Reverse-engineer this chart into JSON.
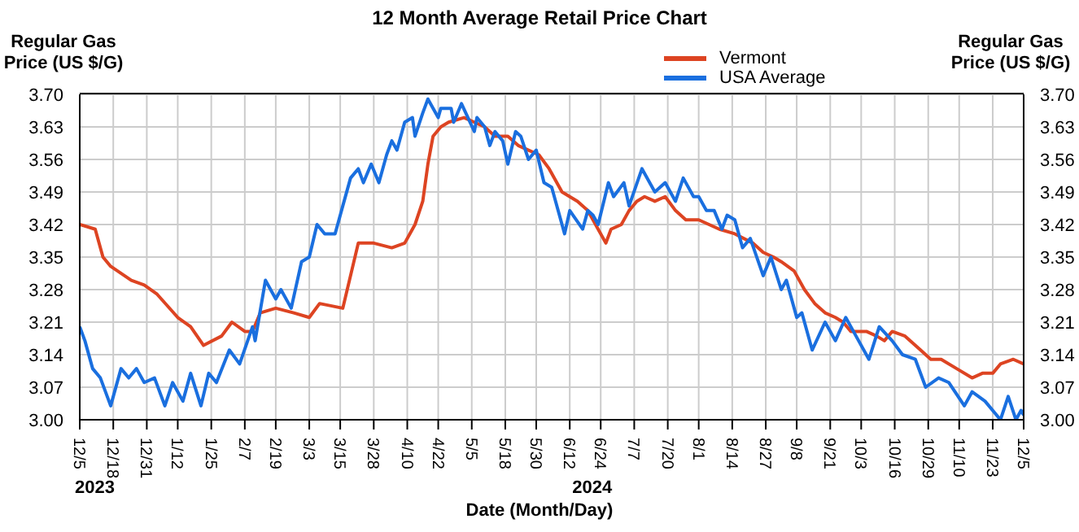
{
  "chart_data": {
    "type": "line",
    "title": "12 Month Average Retail Price Chart",
    "xlabel": "Date (Month/Day)",
    "ylabel": "Regular Gas Price (US $/G)",
    "y2label": "Regular Gas Price (US $/G)",
    "xlim": [
      "2023-12-05",
      "2024-12-05"
    ],
    "xticks": [
      {
        "value": "2023-12-05",
        "label": "12/5"
      },
      {
        "value": "2023-12-18",
        "label": "12/18"
      },
      {
        "value": "2023-12-31",
        "label": "12/31"
      },
      {
        "value": "2024-01-12",
        "label": "1/12"
      },
      {
        "value": "2024-01-25",
        "label": "1/25"
      },
      {
        "value": "2024-02-07",
        "label": "2/7"
      },
      {
        "value": "2024-02-19",
        "label": "2/19"
      },
      {
        "value": "2024-03-03",
        "label": "3/3"
      },
      {
        "value": "2024-03-15",
        "label": "3/15"
      },
      {
        "value": "2024-03-28",
        "label": "3/28"
      },
      {
        "value": "2024-04-10",
        "label": "4/10"
      },
      {
        "value": "2024-04-22",
        "label": "4/22"
      },
      {
        "value": "2024-05-05",
        "label": "5/5"
      },
      {
        "value": "2024-05-18",
        "label": "5/18"
      },
      {
        "value": "2024-05-30",
        "label": "5/30"
      },
      {
        "value": "2024-06-12",
        "label": "6/12"
      },
      {
        "value": "2024-06-24",
        "label": "6/24"
      },
      {
        "value": "2024-07-07",
        "label": "7/7"
      },
      {
        "value": "2024-07-20",
        "label": "7/20"
      },
      {
        "value": "2024-08-01",
        "label": "8/1"
      },
      {
        "value": "2024-08-14",
        "label": "8/14"
      },
      {
        "value": "2024-08-27",
        "label": "8/27"
      },
      {
        "value": "2024-09-08",
        "label": "9/8"
      },
      {
        "value": "2024-09-21",
        "label": "9/21"
      },
      {
        "value": "2024-10-03",
        "label": "10/3"
      },
      {
        "value": "2024-10-16",
        "label": "10/16"
      },
      {
        "value": "2024-10-29",
        "label": "10/29"
      },
      {
        "value": "2024-11-10",
        "label": "11/10"
      },
      {
        "value": "2024-11-23",
        "label": "11/23"
      },
      {
        "value": "2024-12-05",
        "label": "12/5"
      }
    ],
    "ylim": [
      3.0,
      3.7
    ],
    "yticks": [
      {
        "value": 3.0,
        "label": "3.00"
      },
      {
        "value": 3.07,
        "label": "3.07"
      },
      {
        "value": 3.14,
        "label": "3.14"
      },
      {
        "value": 3.21,
        "label": "3.21"
      },
      {
        "value": 3.28,
        "label": "3.28"
      },
      {
        "value": 3.35,
        "label": "3.35"
      },
      {
        "value": 3.42,
        "label": "3.42"
      },
      {
        "value": 3.49,
        "label": "3.49"
      },
      {
        "value": 3.56,
        "label": "3.56"
      },
      {
        "value": 3.63,
        "label": "3.63"
      },
      {
        "value": 3.7,
        "label": "3.70"
      }
    ],
    "y2lim": [
      3.0,
      3.7
    ],
    "y2ticks": [
      {
        "value": 3.0,
        "label": "3.00"
      },
      {
        "value": 3.07,
        "label": "3.07"
      },
      {
        "value": 3.14,
        "label": "3.14"
      },
      {
        "value": 3.21,
        "label": "3.21"
      },
      {
        "value": 3.28,
        "label": "3.28"
      },
      {
        "value": 3.35,
        "label": "3.35"
      },
      {
        "value": 3.42,
        "label": "3.42"
      },
      {
        "value": 3.49,
        "label": "3.49"
      },
      {
        "value": 3.56,
        "label": "3.56"
      },
      {
        "value": 3.63,
        "label": "3.63"
      },
      {
        "value": 3.7,
        "label": "3.70"
      }
    ],
    "grid": true,
    "legend": "top right",
    "marker": "none",
    "line_style": "solid",
    "annotations": [
      "2023",
      "2024"
    ],
    "series": [
      {
        "name": "Vermont",
        "color": "#dd4422",
        "x": [
          "2023-12-05",
          "2023-12-11",
          "2023-12-14",
          "2023-12-17",
          "2023-12-25",
          "2023-12-30",
          "2024-01-04",
          "2024-01-12",
          "2024-01-17",
          "2024-01-22",
          "2024-01-29",
          "2024-02-02",
          "2024-02-07",
          "2024-02-10",
          "2024-02-13",
          "2024-02-19",
          "2024-02-26",
          "2024-03-03",
          "2024-03-07",
          "2024-03-16",
          "2024-03-22",
          "2024-03-28",
          "2024-04-04",
          "2024-04-09",
          "2024-04-13",
          "2024-04-16",
          "2024-04-18",
          "2024-04-20",
          "2024-04-23",
          "2024-04-26",
          "2024-05-02",
          "2024-05-06",
          "2024-05-10",
          "2024-05-14",
          "2024-05-19",
          "2024-05-23",
          "2024-05-27",
          "2024-05-31",
          "2024-06-04",
          "2024-06-09",
          "2024-06-15",
          "2024-06-19",
          "2024-06-23",
          "2024-06-26",
          "2024-06-28",
          "2024-07-02",
          "2024-07-05",
          "2024-07-08",
          "2024-07-11",
          "2024-07-15",
          "2024-07-19",
          "2024-07-23",
          "2024-07-27",
          "2024-08-01",
          "2024-08-09",
          "2024-08-15",
          "2024-08-22",
          "2024-08-26",
          "2024-08-30",
          "2024-09-02",
          "2024-09-07",
          "2024-09-11",
          "2024-09-15",
          "2024-09-19",
          "2024-09-23",
          "2024-09-26",
          "2024-09-29",
          "2024-10-05",
          "2024-10-09",
          "2024-10-12",
          "2024-10-15",
          "2024-10-20",
          "2024-10-26",
          "2024-10-30",
          "2024-11-03",
          "2024-11-09",
          "2024-11-15",
          "2024-11-19",
          "2024-11-23",
          "2024-11-26",
          "2024-12-01",
          "2024-12-05"
        ],
        "values": [
          3.42,
          3.41,
          3.35,
          3.33,
          3.3,
          3.29,
          3.27,
          3.22,
          3.2,
          3.16,
          3.18,
          3.21,
          3.19,
          3.19,
          3.23,
          3.24,
          3.23,
          3.22,
          3.25,
          3.24,
          3.38,
          3.38,
          3.37,
          3.38,
          3.42,
          3.47,
          3.55,
          3.61,
          3.63,
          3.64,
          3.65,
          3.64,
          3.63,
          3.61,
          3.61,
          3.59,
          3.58,
          3.57,
          3.54,
          3.49,
          3.47,
          3.45,
          3.41,
          3.38,
          3.41,
          3.42,
          3.45,
          3.47,
          3.48,
          3.47,
          3.48,
          3.45,
          3.43,
          3.43,
          3.41,
          3.4,
          3.38,
          3.36,
          3.35,
          3.34,
          3.32,
          3.28,
          3.25,
          3.23,
          3.22,
          3.21,
          3.19,
          3.19,
          3.18,
          3.17,
          3.19,
          3.18,
          3.15,
          3.13,
          3.13,
          3.11,
          3.09,
          3.1,
          3.1,
          3.12,
          3.13,
          3.12
        ]
      },
      {
        "name": "USA Average",
        "color": "#1a6fdf",
        "x": [
          "2023-12-05",
          "2023-12-07",
          "2023-12-10",
          "2023-12-13",
          "2023-12-17",
          "2023-12-21",
          "2023-12-24",
          "2023-12-27",
          "2023-12-30",
          "2024-01-03",
          "2024-01-07",
          "2024-01-10",
          "2024-01-14",
          "2024-01-17",
          "2024-01-21",
          "2024-01-24",
          "2024-01-27",
          "2024-02-01",
          "2024-02-05",
          "2024-02-10",
          "2024-02-11",
          "2024-02-15",
          "2024-02-19",
          "2024-02-21",
          "2024-02-25",
          "2024-02-29",
          "2024-03-03",
          "2024-03-06",
          "2024-03-09",
          "2024-03-13",
          "2024-03-16",
          "2024-03-19",
          "2024-03-22",
          "2024-03-24",
          "2024-03-27",
          "2024-03-30",
          "2024-04-02",
          "2024-04-04",
          "2024-04-06",
          "2024-04-09",
          "2024-04-12",
          "2024-04-13",
          "2024-04-16",
          "2024-04-18",
          "2024-04-19",
          "2024-04-22",
          "2024-04-23",
          "2024-04-27",
          "2024-04-28",
          "2024-05-01",
          "2024-05-06",
          "2024-05-07",
          "2024-05-10",
          "2024-05-12",
          "2024-05-14",
          "2024-05-17",
          "2024-05-19",
          "2024-05-22",
          "2024-05-24",
          "2024-05-27",
          "2024-05-30",
          "2024-06-02",
          "2024-06-05",
          "2024-06-10",
          "2024-06-12",
          "2024-06-17",
          "2024-06-19",
          "2024-06-21",
          "2024-06-23",
          "2024-06-27",
          "2024-06-29",
          "2024-07-03",
          "2024-07-05",
          "2024-07-10",
          "2024-07-15",
          "2024-07-19",
          "2024-07-23",
          "2024-07-26",
          "2024-07-30",
          "2024-08-01",
          "2024-08-04",
          "2024-08-07",
          "2024-08-10",
          "2024-08-12",
          "2024-08-15",
          "2024-08-18",
          "2024-08-21",
          "2024-08-26",
          "2024-08-29",
          "2024-09-02",
          "2024-09-04",
          "2024-09-08",
          "2024-09-10",
          "2024-09-14",
          "2024-09-19",
          "2024-09-23",
          "2024-09-27",
          "2024-10-01",
          "2024-10-06",
          "2024-10-10",
          "2024-10-15",
          "2024-10-19",
          "2024-10-24",
          "2024-10-28",
          "2024-11-02",
          "2024-11-06",
          "2024-11-12",
          "2024-11-15",
          "2024-11-20",
          "2024-11-26",
          "2024-11-29",
          "2024-12-02",
          "2024-12-04",
          "2024-12-05"
        ],
        "values": [
          3.2,
          3.17,
          3.11,
          3.09,
          3.03,
          3.11,
          3.09,
          3.11,
          3.08,
          3.09,
          3.03,
          3.08,
          3.04,
          3.1,
          3.03,
          3.1,
          3.08,
          3.15,
          3.12,
          3.2,
          3.17,
          3.3,
          3.26,
          3.28,
          3.24,
          3.34,
          3.35,
          3.42,
          3.4,
          3.4,
          3.46,
          3.52,
          3.54,
          3.51,
          3.55,
          3.51,
          3.57,
          3.6,
          3.58,
          3.64,
          3.65,
          3.61,
          3.66,
          3.69,
          3.68,
          3.65,
          3.67,
          3.67,
          3.64,
          3.68,
          3.62,
          3.65,
          3.63,
          3.59,
          3.62,
          3.6,
          3.55,
          3.62,
          3.61,
          3.56,
          3.58,
          3.51,
          3.5,
          3.4,
          3.45,
          3.41,
          3.45,
          3.44,
          3.42,
          3.51,
          3.48,
          3.51,
          3.46,
          3.54,
          3.49,
          3.51,
          3.47,
          3.52,
          3.48,
          3.48,
          3.45,
          3.45,
          3.41,
          3.44,
          3.43,
          3.37,
          3.39,
          3.31,
          3.35,
          3.28,
          3.3,
          3.22,
          3.23,
          3.15,
          3.21,
          3.17,
          3.22,
          3.18,
          3.13,
          3.2,
          3.17,
          3.14,
          3.13,
          3.07,
          3.09,
          3.08,
          3.03,
          3.06,
          3.04,
          3.0,
          3.05,
          3.0,
          3.02,
          3.01
        ]
      }
    ]
  }
}
